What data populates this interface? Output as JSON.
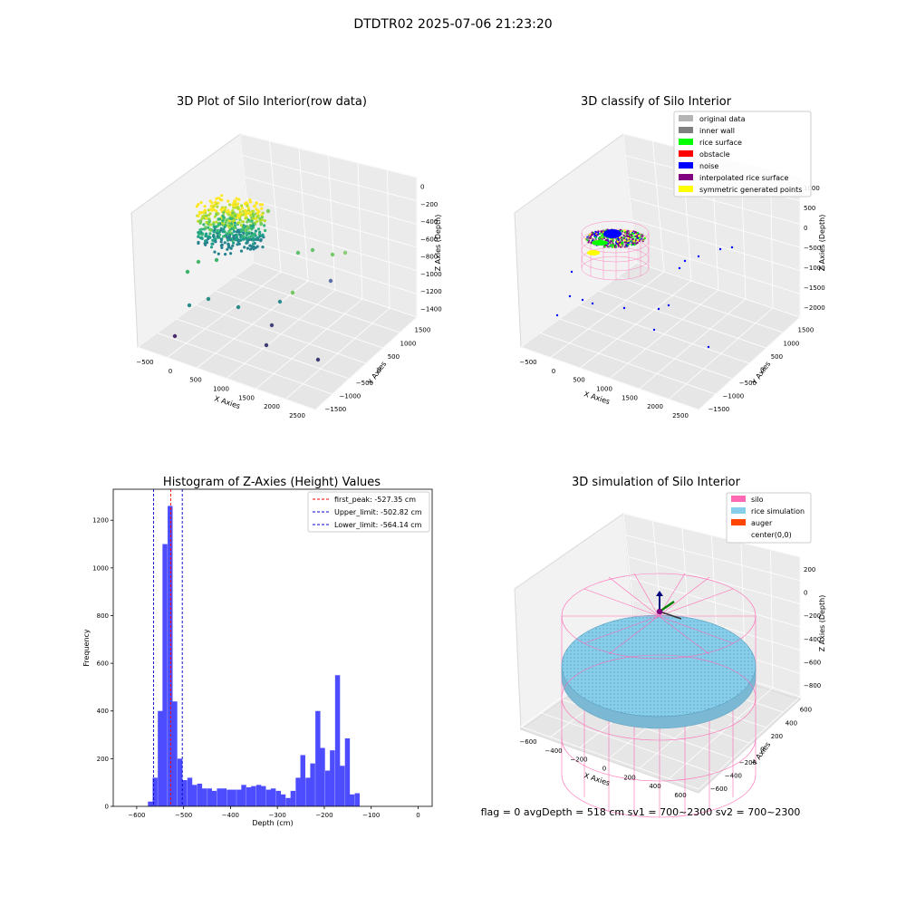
{
  "figure": {
    "suptitle": "DTDTR02 2025-07-06 21:23:20",
    "footer": "flag = 0     avgDepth = 518 cm  sv1 = 700~2300  sv2 = 700~2300"
  },
  "colors": {
    "hist_bar": "#4d4dff",
    "first_peak_line": "#ff0000",
    "limit_lines": "#0000cc",
    "silo": "#ff69b4",
    "rice_simulation": "#87ceeb",
    "auger": "#ff4500",
    "original_data": "#b4b4b4",
    "inner_wall": "#808080",
    "rice_surface": "#00ff00",
    "obstacle": "#ff0000",
    "noise": "#0000ff",
    "interpolated": "#800080",
    "symmetric": "#ffff00"
  },
  "chart_data": [
    {
      "type": "scatter",
      "subtype": "3d",
      "title": "3D Plot of Silo Interior(row data)",
      "xlabel": "X Axies",
      "ylabel": "Y Axies",
      "zlabel": "Z Axies (Depth)",
      "x_ticks": [
        "−500",
        "0",
        "500",
        "1000",
        "1500",
        "2000",
        "2500"
      ],
      "y_ticks": [
        "−1500",
        "−1000",
        "−500",
        "0",
        "500",
        "1000",
        "1500"
      ],
      "z_ticks": [
        "0",
        "−200",
        "−400",
        "−600",
        "−800",
        "−1000",
        "−1200",
        "−1400"
      ],
      "colormap": "viridis"
    },
    {
      "type": "scatter",
      "subtype": "3d",
      "title": "3D classify of Silo Interior",
      "xlabel": "X Axies",
      "ylabel": "Y Axies",
      "zlabel": "Z Axies (Depth)",
      "x_ticks": [
        "−500",
        "0",
        "500",
        "1000",
        "1500",
        "2000",
        "2500"
      ],
      "y_ticks": [
        "−1500",
        "−1000",
        "−500",
        "0",
        "500",
        "1000",
        "1500"
      ],
      "z_ticks": [
        "1000",
        "500",
        "0",
        "−500",
        "−1000",
        "−1500",
        "−2000"
      ],
      "legend": [
        {
          "label": "original data",
          "color": "#b4b4b4"
        },
        {
          "label": "inner wall",
          "color": "#808080"
        },
        {
          "label": "rice surface",
          "color": "#00ff00"
        },
        {
          "label": "obstacle",
          "color": "#ff0000"
        },
        {
          "label": "noise",
          "color": "#0000ff"
        },
        {
          "label": "interpolated rice surface",
          "color": "#800080"
        },
        {
          "label": "symmetric generated points",
          "color": "#ffff00"
        }
      ],
      "legend_position": "top-right"
    },
    {
      "type": "bar",
      "subtype": "histogram",
      "title": "Histogram of Z-Axies (Height) Values",
      "xlabel": "Depth (cm)",
      "ylabel": "Frequency",
      "xlim": [
        -650,
        30
      ],
      "ylim": [
        0,
        1330
      ],
      "x_ticks": [
        -600,
        -500,
        -400,
        -300,
        -200,
        -100,
        0
      ],
      "y_ticks": [
        0,
        200,
        400,
        600,
        800,
        1000,
        1200
      ],
      "bin_width": 10.5,
      "bin_starts": [
        -576,
        -566,
        -555,
        -545,
        -534,
        -524,
        -513,
        -503,
        -492,
        -482,
        -471,
        -461,
        -450,
        -440,
        -429,
        -419,
        -408,
        -398,
        -387,
        -377,
        -366,
        -356,
        -345,
        -335,
        -324,
        -314,
        -303,
        -293,
        -282,
        -272,
        -261,
        -251,
        -240,
        -230,
        -219,
        -209,
        -198,
        -188,
        -177,
        -167,
        -156,
        -146,
        -135,
        -125,
        -114,
        -104,
        -93,
        -83,
        -72,
        -62,
        -51,
        -41,
        -30,
        -20,
        -9,
        -1
      ],
      "values": [
        20,
        120,
        400,
        1100,
        1260,
        440,
        200,
        110,
        120,
        90,
        95,
        75,
        75,
        65,
        75,
        75,
        70,
        70,
        70,
        90,
        80,
        85,
        90,
        85,
        70,
        75,
        65,
        50,
        35,
        65,
        120,
        215,
        120,
        180,
        400,
        245,
        150,
        235,
        550,
        170,
        285,
        50,
        55,
        0,
        0,
        0,
        0,
        0,
        0,
        0,
        0,
        0,
        0,
        0,
        0,
        0
      ],
      "vlines": [
        {
          "label": "first_peak: -527.35 cm",
          "x": -527.35,
          "color": "#ff0000"
        },
        {
          "label": "Upper_limit: -502.82 cm",
          "x": -502.82,
          "color": "#0000cc"
        },
        {
          "label": "Lower_limit: -564.14 cm",
          "x": -564.14,
          "color": "#0000cc"
        }
      ],
      "legend_position": "top-right"
    },
    {
      "type": "scatter",
      "subtype": "3d",
      "title": "3D simulation of Silo Interior",
      "xlabel": "X Axies",
      "ylabel": "Y Axies",
      "zlabel": "Z Axies (Depth)",
      "x_ticks": [
        "−600",
        "−400",
        "−200",
        "0",
        "200",
        "400",
        "600"
      ],
      "y_ticks": [
        "−600",
        "−400",
        "−200",
        "0",
        "200",
        "400",
        "600"
      ],
      "z_ticks": [
        "200",
        "0",
        "−200",
        "−400",
        "−600",
        "−800"
      ],
      "legend": [
        {
          "label": "silo",
          "color": "#ff69b4"
        },
        {
          "label": "rice simulation",
          "color": "#87ceeb"
        },
        {
          "label": "auger",
          "color": "#ff4500"
        },
        {
          "label": "center(0,0)",
          "color": ""
        }
      ],
      "legend_position": "top-right"
    }
  ]
}
